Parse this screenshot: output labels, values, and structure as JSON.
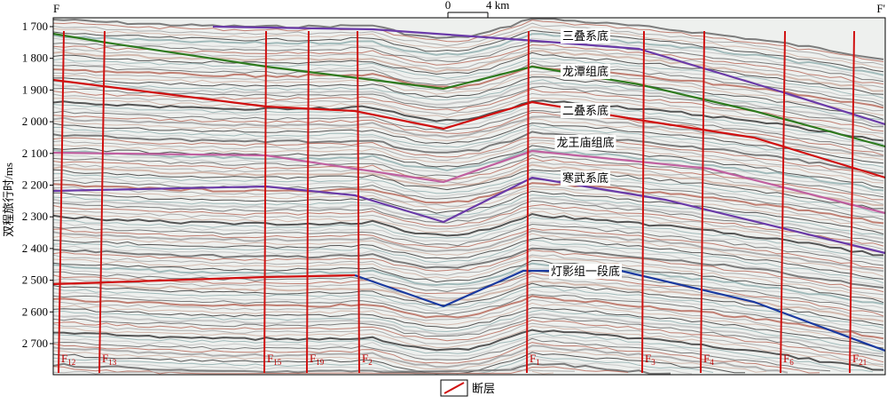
{
  "corner_left": "F",
  "corner_right": "F'",
  "scale_bar": {
    "start": "0",
    "end": "4 km"
  },
  "y_axis": {
    "label": "双程旅行时/ms",
    "ticks": [
      "1 700",
      "1 800",
      "1 900",
      "2 000",
      "2 100",
      "2 200",
      "2 300",
      "2 400",
      "2 500",
      "2 600",
      "2 700"
    ]
  },
  "horizons": [
    "三叠系底",
    "龙潭组底",
    "二叠系底",
    "龙王庙组底",
    "寒武系底",
    "灯影组一段底"
  ],
  "faults": [
    {
      "label": "F",
      "sub": "12"
    },
    {
      "label": "F",
      "sub": "13"
    },
    {
      "label": "F",
      "sub": "15"
    },
    {
      "label": "F",
      "sub": "19"
    },
    {
      "label": "F",
      "sub": "2"
    },
    {
      "label": "F",
      "sub": "1"
    },
    {
      "label": "F",
      "sub": "3"
    },
    {
      "label": "F",
      "sub": "4"
    },
    {
      "label": "F",
      "sub": "6"
    },
    {
      "label": "F",
      "sub": "21"
    }
  ],
  "legend": {
    "label": "断层"
  }
}
